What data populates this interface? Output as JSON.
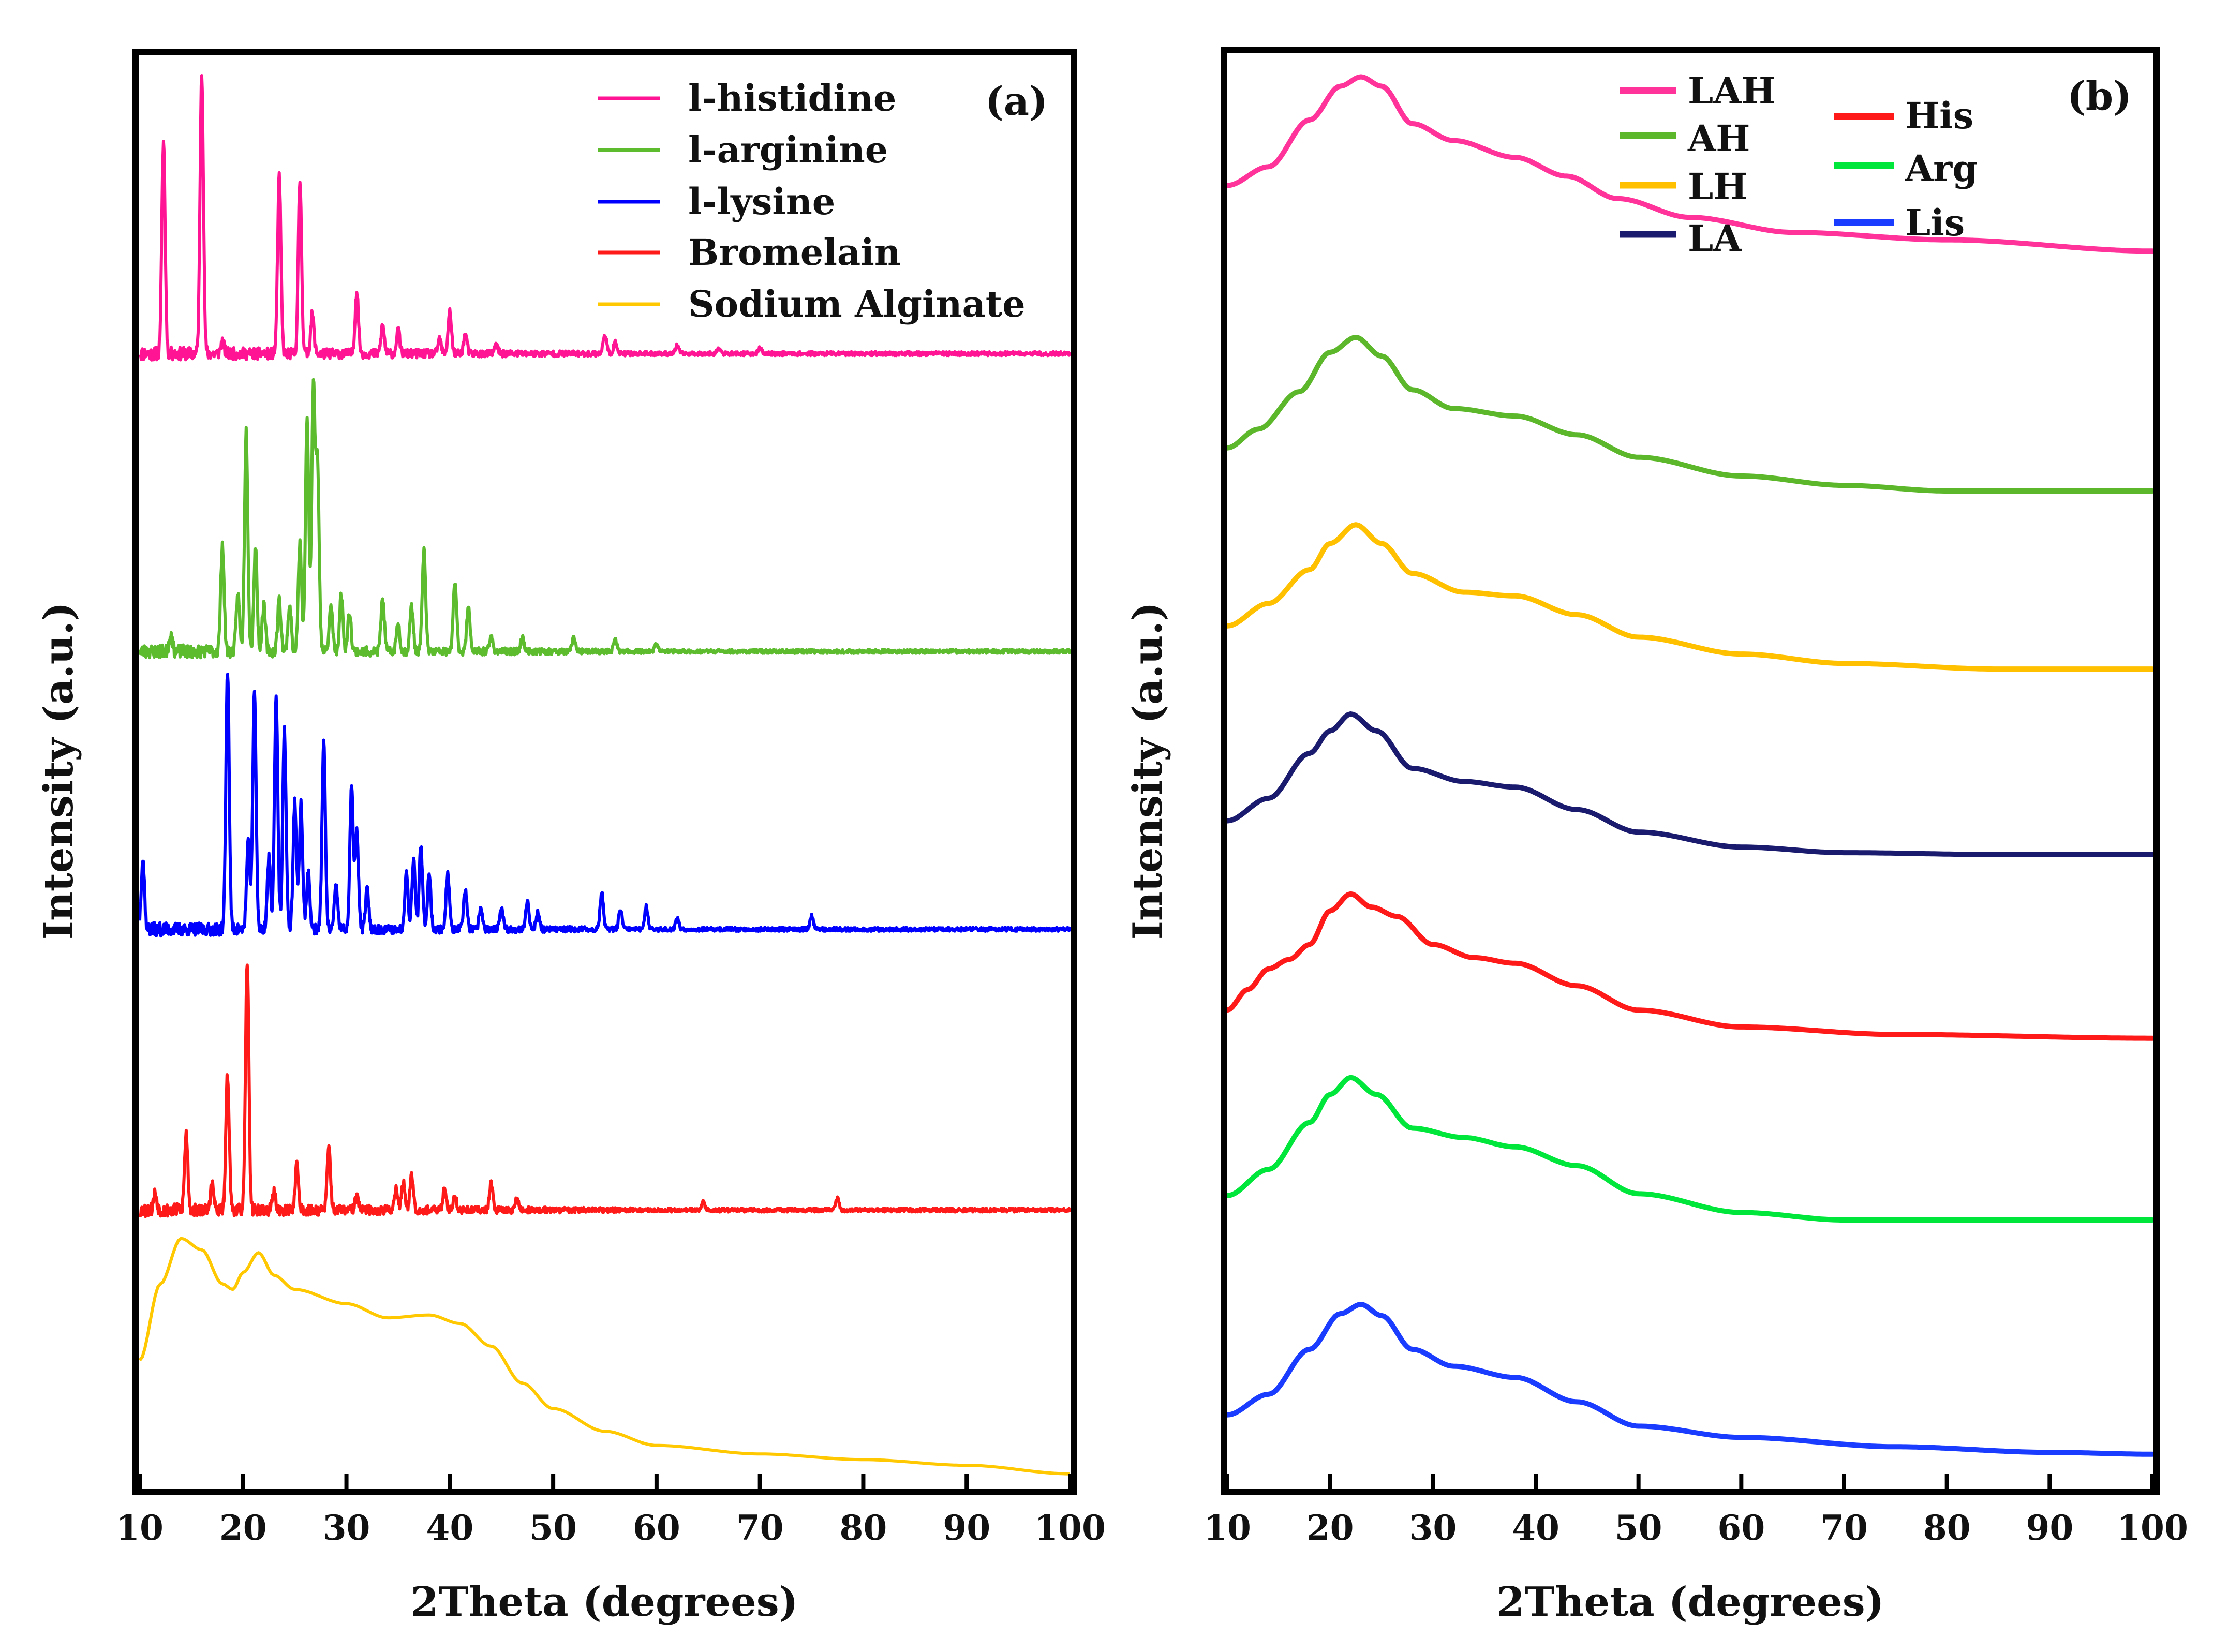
{
  "chart_data": [
    {
      "id": "a",
      "type": "line",
      "panel_label": "(a)",
      "xlabel": "2Theta (degrees)",
      "ylabel": "Intensity (a.u.)",
      "xlim": [
        10,
        100
      ],
      "xticks": [
        10,
        20,
        30,
        40,
        50,
        60,
        70,
        80,
        90,
        100
      ],
      "legend_position": "top-right",
      "y_units": "stacked offset, arbitrary",
      "series": [
        {
          "name": "l-histidine",
          "color": "#ff1493",
          "kind": "peaks",
          "baseline": 4.0,
          "seed": 11,
          "peaks": [
            [
              12.3,
              0.75
            ],
            [
              16.0,
              1.0
            ],
            [
              18.0,
              0.04
            ],
            [
              23.5,
              0.62
            ],
            [
              25.5,
              0.61
            ],
            [
              26.7,
              0.14
            ],
            [
              31.0,
              0.22
            ],
            [
              33.5,
              0.1
            ],
            [
              35.0,
              0.08
            ],
            [
              39.0,
              0.05
            ],
            [
              40.0,
              0.15
            ],
            [
              41.5,
              0.07
            ],
            [
              44.5,
              0.03
            ],
            [
              55.0,
              0.07
            ],
            [
              56.0,
              0.04
            ],
            [
              62.0,
              0.03
            ],
            [
              66.0,
              0.02
            ],
            [
              70.0,
              0.02
            ]
          ]
        },
        {
          "name": "l-arginine",
          "color": "#5cbc2e",
          "kind": "peaks",
          "baseline": 2.95,
          "seed": 23,
          "peaks": [
            [
              13.0,
              0.06
            ],
            [
              18.0,
              0.38
            ],
            [
              19.5,
              0.2
            ],
            [
              20.3,
              0.78
            ],
            [
              21.2,
              0.37
            ],
            [
              22.0,
              0.16
            ],
            [
              23.5,
              0.18
            ],
            [
              24.5,
              0.16
            ],
            [
              25.5,
              0.38
            ],
            [
              26.2,
              0.82
            ],
            [
              26.8,
              0.93
            ],
            [
              27.2,
              0.66
            ],
            [
              28.5,
              0.16
            ],
            [
              29.5,
              0.2
            ],
            [
              30.3,
              0.14
            ],
            [
              33.5,
              0.19
            ],
            [
              35.0,
              0.1
            ],
            [
              36.3,
              0.16
            ],
            [
              37.5,
              0.36
            ],
            [
              40.5,
              0.25
            ],
            [
              41.8,
              0.16
            ],
            [
              44.0,
              0.05
            ],
            [
              47.0,
              0.05
            ],
            [
              52.0,
              0.05
            ],
            [
              56.0,
              0.04
            ],
            [
              60.0,
              0.03
            ]
          ]
        },
        {
          "name": "l-lysine",
          "color": "#0000ff",
          "kind": "peaks",
          "baseline": 1.97,
          "seed": 37,
          "peaks": [
            [
              10.3,
              0.25
            ],
            [
              18.5,
              0.92
            ],
            [
              20.5,
              0.3
            ],
            [
              21.1,
              0.84
            ],
            [
              22.5,
              0.25
            ],
            [
              23.2,
              0.83
            ],
            [
              24.0,
              0.7
            ],
            [
              25.0,
              0.45
            ],
            [
              25.6,
              0.44
            ],
            [
              26.3,
              0.2
            ],
            [
              27.8,
              0.66
            ],
            [
              29.0,
              0.15
            ],
            [
              30.5,
              0.5
            ],
            [
              31.0,
              0.34
            ],
            [
              32.0,
              0.14
            ],
            [
              35.8,
              0.2
            ],
            [
              36.5,
              0.25
            ],
            [
              37.2,
              0.29
            ],
            [
              38.0,
              0.2
            ],
            [
              39.8,
              0.2
            ],
            [
              41.5,
              0.14
            ],
            [
              43.0,
              0.08
            ],
            [
              45.0,
              0.07
            ],
            [
              47.5,
              0.1
            ],
            [
              48.5,
              0.06
            ],
            [
              54.7,
              0.13
            ],
            [
              56.5,
              0.07
            ],
            [
              59.0,
              0.08
            ],
            [
              62.0,
              0.04
            ],
            [
              75.0,
              0.05
            ]
          ]
        },
        {
          "name": "Bromelain",
          "color": "#ff1a1a",
          "kind": "peaks",
          "baseline": 0.98,
          "seed": 53,
          "peaks": [
            [
              11.5,
              0.06
            ],
            [
              14.5,
              0.27
            ],
            [
              17.0,
              0.09
            ],
            [
              18.5,
              0.48
            ],
            [
              20.4,
              0.88
            ],
            [
              23.0,
              0.06
            ],
            [
              25.2,
              0.16
            ],
            [
              28.3,
              0.22
            ],
            [
              31.0,
              0.05
            ],
            [
              34.8,
              0.08
            ],
            [
              35.5,
              0.1
            ],
            [
              36.3,
              0.13
            ],
            [
              39.5,
              0.08
            ],
            [
              40.5,
              0.05
            ],
            [
              44.0,
              0.1
            ],
            [
              46.5,
              0.04
            ],
            [
              64.5,
              0.03
            ],
            [
              77.5,
              0.04
            ]
          ]
        },
        {
          "name": "Sodium Alginate",
          "color": "#ffc800",
          "kind": "curve",
          "seed": 0,
          "points": [
            [
              10,
              0.45
            ],
            [
              12,
              0.72
            ],
            [
              14,
              0.88
            ],
            [
              16,
              0.84
            ],
            [
              18,
              0.72
            ],
            [
              19,
              0.7
            ],
            [
              20,
              0.76
            ],
            [
              21.5,
              0.83
            ],
            [
              23,
              0.75
            ],
            [
              25,
              0.7
            ],
            [
              30,
              0.65
            ],
            [
              34,
              0.6
            ],
            [
              38,
              0.61
            ],
            [
              41,
              0.58
            ],
            [
              44,
              0.5
            ],
            [
              47,
              0.37
            ],
            [
              50,
              0.28
            ],
            [
              55,
              0.2
            ],
            [
              60,
              0.15
            ],
            [
              70,
              0.12
            ],
            [
              80,
              0.1
            ],
            [
              90,
              0.08
            ],
            [
              100,
              0.05
            ]
          ]
        }
      ]
    },
    {
      "id": "b",
      "type": "line",
      "panel_label": "(b)",
      "xlabel": "2Theta (degrees)",
      "ylabel": "Intensity (a.u.)",
      "xlim": [
        10,
        100
      ],
      "xticks": [
        10,
        20,
        30,
        40,
        50,
        60,
        70,
        80,
        90,
        100
      ],
      "legend_position": "top-right",
      "y_units": "stacked offset, arbitrary",
      "series": [
        {
          "name": "LAH",
          "color": "#ff3399",
          "offset": 6.0,
          "points": [
            [
              10,
              0.85
            ],
            [
              14,
              0.95
            ],
            [
              18,
              1.2
            ],
            [
              21,
              1.38
            ],
            [
              23,
              1.43
            ],
            [
              25,
              1.38
            ],
            [
              28,
              1.18
            ],
            [
              32,
              1.09
            ],
            [
              38,
              1.0
            ],
            [
              43,
              0.9
            ],
            [
              48,
              0.78
            ],
            [
              55,
              0.68
            ],
            [
              65,
              0.6
            ],
            [
              80,
              0.56
            ],
            [
              100,
              0.5
            ]
          ]
        },
        {
          "name": "AH",
          "color": "#5cb82a",
          "offset": 5.0,
          "points": [
            [
              10,
              0.45
            ],
            [
              13,
              0.55
            ],
            [
              17,
              0.75
            ],
            [
              20,
              0.96
            ],
            [
              22.5,
              1.04
            ],
            [
              25,
              0.94
            ],
            [
              28,
              0.76
            ],
            [
              32,
              0.66
            ],
            [
              38,
              0.62
            ],
            [
              44,
              0.52
            ],
            [
              50,
              0.4
            ],
            [
              60,
              0.3
            ],
            [
              70,
              0.25
            ],
            [
              80,
              0.22
            ],
            [
              100,
              0.22
            ]
          ]
        },
        {
          "name": "LH",
          "color": "#ffc000",
          "offset": 4.0,
          "points": [
            [
              10,
              0.5
            ],
            [
              14,
              0.62
            ],
            [
              18,
              0.8
            ],
            [
              20,
              0.94
            ],
            [
              22.5,
              1.04
            ],
            [
              25,
              0.94
            ],
            [
              28,
              0.78
            ],
            [
              33,
              0.68
            ],
            [
              38,
              0.66
            ],
            [
              44,
              0.56
            ],
            [
              50,
              0.44
            ],
            [
              60,
              0.35
            ],
            [
              70,
              0.3
            ],
            [
              85,
              0.27
            ],
            [
              100,
              0.27
            ]
          ]
        },
        {
          "name": "LA",
          "color": "#1a1a6e",
          "offset": 3.0,
          "points": [
            [
              10,
              0.46
            ],
            [
              14,
              0.58
            ],
            [
              18,
              0.82
            ],
            [
              20,
              0.94
            ],
            [
              22,
              1.03
            ],
            [
              24.5,
              0.94
            ],
            [
              28,
              0.74
            ],
            [
              33,
              0.67
            ],
            [
              38,
              0.64
            ],
            [
              44,
              0.52
            ],
            [
              50,
              0.4
            ],
            [
              60,
              0.32
            ],
            [
              70,
              0.29
            ],
            [
              85,
              0.28
            ],
            [
              100,
              0.28
            ]
          ]
        },
        {
          "name": "His",
          "color": "#ff1a1a",
          "offset": 2.0,
          "points": [
            [
              10,
              0.45
            ],
            [
              12,
              0.56
            ],
            [
              14,
              0.67
            ],
            [
              16,
              0.72
            ],
            [
              18,
              0.8
            ],
            [
              20,
              0.98
            ],
            [
              22,
              1.07
            ],
            [
              24,
              1.0
            ],
            [
              26.5,
              0.95
            ],
            [
              30,
              0.8
            ],
            [
              34,
              0.73
            ],
            [
              38,
              0.7
            ],
            [
              44,
              0.58
            ],
            [
              50,
              0.45
            ],
            [
              60,
              0.36
            ],
            [
              75,
              0.32
            ],
            [
              100,
              0.3
            ]
          ]
        },
        {
          "name": "Arg",
          "color": "#00e63a",
          "offset": 1.0,
          "points": [
            [
              10,
              0.46
            ],
            [
              14,
              0.6
            ],
            [
              18,
              0.85
            ],
            [
              20,
              1.0
            ],
            [
              22,
              1.09
            ],
            [
              24.5,
              1.0
            ],
            [
              28,
              0.82
            ],
            [
              33,
              0.77
            ],
            [
              38,
              0.72
            ],
            [
              44,
              0.62
            ],
            [
              50,
              0.47
            ],
            [
              60,
              0.37
            ],
            [
              70,
              0.33
            ],
            [
              85,
              0.33
            ],
            [
              100,
              0.33
            ]
          ]
        },
        {
          "name": "Lis",
          "color": "#1a3cff",
          "offset": 0.0,
          "points": [
            [
              10,
              0.29
            ],
            [
              14,
              0.4
            ],
            [
              18,
              0.64
            ],
            [
              21,
              0.83
            ],
            [
              23,
              0.88
            ],
            [
              25,
              0.82
            ],
            [
              28,
              0.64
            ],
            [
              32,
              0.55
            ],
            [
              38,
              0.49
            ],
            [
              44,
              0.36
            ],
            [
              50,
              0.23
            ],
            [
              60,
              0.17
            ],
            [
              75,
              0.12
            ],
            [
              90,
              0.09
            ],
            [
              100,
              0.08
            ]
          ]
        }
      ]
    }
  ]
}
